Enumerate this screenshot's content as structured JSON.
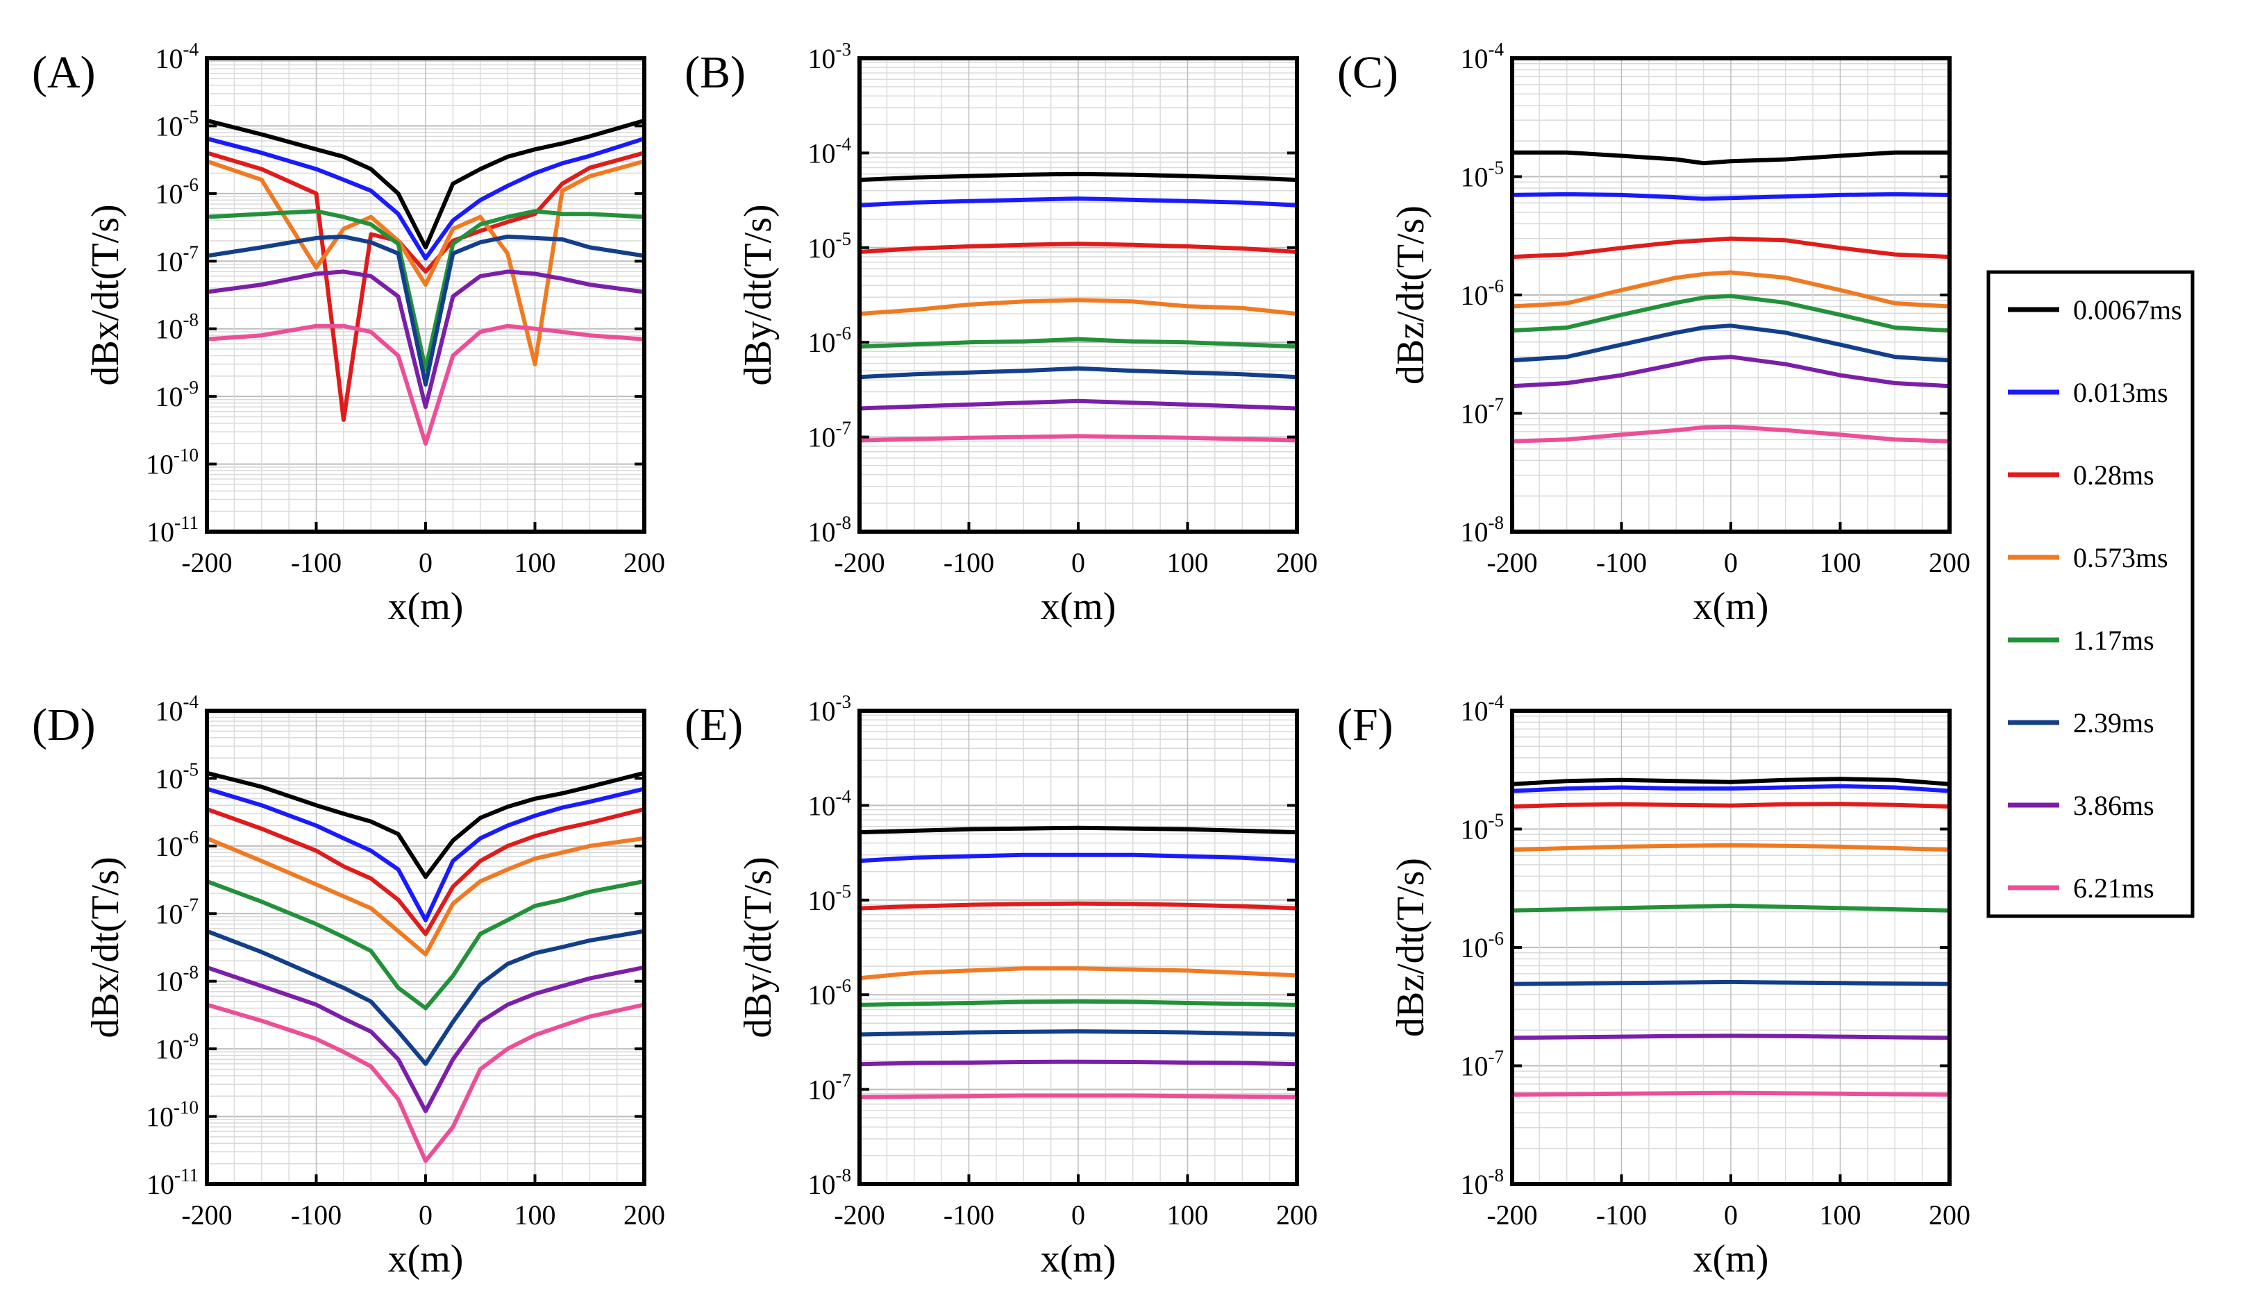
{
  "legend": {
    "entries": [
      {
        "label": "0.0067ms",
        "color": "#000000"
      },
      {
        "label": "0.013ms",
        "color": "#1a1aff"
      },
      {
        "label": "0.28ms",
        "color": "#e01b1b"
      },
      {
        "label": "0.573ms",
        "color": "#f07a22"
      },
      {
        "label": "1.17ms",
        "color": "#23913a"
      },
      {
        "label": "2.39ms",
        "color": "#133f8a"
      },
      {
        "label": "3.86ms",
        "color": "#7b1fa8"
      },
      {
        "label": "6.21ms",
        "color": "#ec4f97"
      }
    ]
  },
  "chart_data": [
    {
      "panel": "(A)",
      "type": "line",
      "xlabel": "x(m)",
      "ylabel": "dBx/dt(T/s)",
      "xlim": [
        -200,
        200
      ],
      "yscale": "log",
      "ylim_exp": [
        -11,
        -4
      ],
      "xticks": [
        "-200",
        "-100",
        "0",
        "100",
        "200"
      ],
      "x": [
        -200,
        -150,
        -100,
        -75,
        -50,
        -25,
        0,
        25,
        50,
        75,
        100,
        125,
        150,
        200
      ],
      "series": [
        {
          "name": "0.0067ms",
          "values": [
            1.2e-05,
            7.5e-06,
            4.5e-06,
            3.5e-06,
            2.3e-06,
            1e-06,
            1.6e-07,
            1.4e-06,
            2.3e-06,
            3.5e-06,
            4.5e-06,
            5.5e-06,
            7e-06,
            1.2e-05
          ]
        },
        {
          "name": "0.013ms",
          "values": [
            6.5e-06,
            4e-06,
            2.3e-06,
            1.6e-06,
            1.1e-06,
            5e-07,
            1.1e-07,
            4e-07,
            8e-07,
            1.3e-06,
            2e-06,
            2.8e-06,
            3.6e-06,
            6.5e-06
          ]
        },
        {
          "name": "0.28ms",
          "values": [
            4e-06,
            2.3e-06,
            1e-06,
            4.5e-10,
            2.5e-07,
            2e-07,
            7e-08,
            2e-07,
            2.8e-07,
            3.8e-07,
            5e-07,
            1.4e-06,
            2.4e-06,
            4e-06
          ]
        },
        {
          "name": "0.573ms",
          "values": [
            3e-06,
            1.6e-06,
            8e-08,
            3e-07,
            4.5e-07,
            2e-07,
            4.5e-08,
            3e-07,
            4.5e-07,
            1.3e-07,
            3e-09,
            1.1e-06,
            1.8e-06,
            3e-06
          ]
        },
        {
          "name": "1.17ms",
          "values": [
            4.5e-07,
            5e-07,
            5.5e-07,
            4.5e-07,
            3.5e-07,
            1.8e-07,
            2.5e-09,
            1.8e-07,
            3.5e-07,
            4.5e-07,
            5.5e-07,
            5e-07,
            5e-07,
            4.5e-07
          ]
        },
        {
          "name": "2.39ms",
          "values": [
            1.2e-07,
            1.6e-07,
            2.2e-07,
            2.3e-07,
            1.9e-07,
            1.3e-07,
            1.5e-09,
            1.3e-07,
            1.9e-07,
            2.3e-07,
            2.2e-07,
            2.1e-07,
            1.6e-07,
            1.2e-07
          ]
        },
        {
          "name": "3.86ms",
          "values": [
            3.5e-08,
            4.5e-08,
            6.5e-08,
            7e-08,
            6e-08,
            3e-08,
            7e-10,
            3e-08,
            6e-08,
            7e-08,
            6.5e-08,
            5.5e-08,
            4.5e-08,
            3.5e-08
          ]
        },
        {
          "name": "6.21ms",
          "values": [
            7e-09,
            8e-09,
            1.1e-08,
            1.1e-08,
            9e-09,
            4e-09,
            2e-10,
            4e-09,
            9e-09,
            1.1e-08,
            1e-08,
            9e-09,
            8e-09,
            7e-09
          ]
        }
      ]
    },
    {
      "panel": "(B)",
      "type": "line",
      "xlabel": "x(m)",
      "ylabel": "dBy/dt(T/s)",
      "xlim": [
        -200,
        200
      ],
      "yscale": "log",
      "ylim_exp": [
        -8,
        -3
      ],
      "xticks": [
        "-200",
        "-100",
        "0",
        "100",
        "200"
      ],
      "x": [
        -200,
        -150,
        -100,
        -50,
        0,
        50,
        100,
        150,
        200
      ],
      "series": [
        {
          "name": "0.0067ms",
          "values": [
            5.2e-05,
            5.5e-05,
            5.7e-05,
            5.9e-05,
            6e-05,
            5.9e-05,
            5.7e-05,
            5.5e-05,
            5.2e-05
          ]
        },
        {
          "name": "0.013ms",
          "values": [
            2.8e-05,
            3e-05,
            3.1e-05,
            3.2e-05,
            3.3e-05,
            3.2e-05,
            3.1e-05,
            3e-05,
            2.8e-05
          ]
        },
        {
          "name": "0.28ms",
          "values": [
            9e-06,
            9.8e-06,
            1.03e-05,
            1.07e-05,
            1.1e-05,
            1.07e-05,
            1.03e-05,
            9.8e-06,
            9e-06
          ]
        },
        {
          "name": "0.573ms",
          "values": [
            2e-06,
            2.2e-06,
            2.5e-06,
            2.7e-06,
            2.8e-06,
            2.7e-06,
            2.4e-06,
            2.3e-06,
            2e-06
          ]
        },
        {
          "name": "1.17ms",
          "values": [
            9e-07,
            9.5e-07,
            1e-06,
            1.02e-06,
            1.08e-06,
            1.02e-06,
            1e-06,
            9.5e-07,
            9e-07
          ]
        },
        {
          "name": "2.39ms",
          "values": [
            4.3e-07,
            4.6e-07,
            4.8e-07,
            5e-07,
            5.3e-07,
            5e-07,
            4.8e-07,
            4.6e-07,
            4.3e-07
          ]
        },
        {
          "name": "3.86ms",
          "values": [
            2e-07,
            2.1e-07,
            2.2e-07,
            2.3e-07,
            2.4e-07,
            2.3e-07,
            2.2e-07,
            2.1e-07,
            2e-07
          ]
        },
        {
          "name": "6.21ms",
          "values": [
            9.2e-08,
            9.5e-08,
            9.8e-08,
            1e-07,
            1.02e-07,
            1e-07,
            9.8e-08,
            9.5e-08,
            9.2e-08
          ]
        }
      ]
    },
    {
      "panel": "(C)",
      "type": "line",
      "xlabel": "x(m)",
      "ylabel": "dBz/dt(T/s)",
      "xlim": [
        -200,
        200
      ],
      "yscale": "log",
      "ylim_exp": [
        -8,
        -4
      ],
      "xticks": [
        "-200",
        "-100",
        "0",
        "100",
        "200"
      ],
      "x": [
        -200,
        -150,
        -100,
        -50,
        -25,
        0,
        50,
        100,
        150,
        200
      ],
      "series": [
        {
          "name": "0.0067ms",
          "values": [
            1.6e-05,
            1.6e-05,
            1.5e-05,
            1.4e-05,
            1.3e-05,
            1.35e-05,
            1.4e-05,
            1.5e-05,
            1.6e-05,
            1.6e-05
          ]
        },
        {
          "name": "0.013ms",
          "values": [
            7e-06,
            7.1e-06,
            7e-06,
            6.7e-06,
            6.5e-06,
            6.6e-06,
            6.8e-06,
            7e-06,
            7.1e-06,
            7e-06
          ]
        },
        {
          "name": "0.28ms",
          "values": [
            2.1e-06,
            2.2e-06,
            2.5e-06,
            2.8e-06,
            2.9e-06,
            3e-06,
            2.9e-06,
            2.5e-06,
            2.2e-06,
            2.1e-06
          ]
        },
        {
          "name": "0.573ms",
          "values": [
            8e-07,
            8.5e-07,
            1.1e-06,
            1.4e-06,
            1.5e-06,
            1.55e-06,
            1.4e-06,
            1.1e-06,
            8.5e-07,
            8e-07
          ]
        },
        {
          "name": "1.17ms",
          "values": [
            5e-07,
            5.3e-07,
            6.8e-07,
            8.6e-07,
            9.5e-07,
            9.8e-07,
            8.6e-07,
            6.8e-07,
            5.3e-07,
            5e-07
          ]
        },
        {
          "name": "2.39ms",
          "values": [
            2.8e-07,
            3e-07,
            3.8e-07,
            4.8e-07,
            5.3e-07,
            5.5e-07,
            4.8e-07,
            3.8e-07,
            3e-07,
            2.8e-07
          ]
        },
        {
          "name": "3.86ms",
          "values": [
            1.7e-07,
            1.8e-07,
            2.1e-07,
            2.6e-07,
            2.9e-07,
            3e-07,
            2.6e-07,
            2.1e-07,
            1.8e-07,
            1.7e-07
          ]
        },
        {
          "name": "6.21ms",
          "values": [
            5.8e-08,
            6e-08,
            6.6e-08,
            7.2e-08,
            7.6e-08,
            7.7e-08,
            7.2e-08,
            6.6e-08,
            6e-08,
            5.8e-08
          ]
        }
      ]
    },
    {
      "panel": "(D)",
      "type": "line",
      "xlabel": "x(m)",
      "ylabel": "dBx/dt(T/s)",
      "xlim": [
        -200,
        200
      ],
      "yscale": "log",
      "ylim_exp": [
        -11,
        -4
      ],
      "xticks": [
        "-200",
        "-100",
        "0",
        "100",
        "200"
      ],
      "x": [
        -200,
        -150,
        -100,
        -75,
        -50,
        -25,
        0,
        25,
        50,
        75,
        100,
        125,
        150,
        200
      ],
      "series": [
        {
          "name": "0.0067ms",
          "values": [
            1.2e-05,
            7.5e-06,
            4e-06,
            3e-06,
            2.3e-06,
            1.5e-06,
            3.5e-07,
            1.2e-06,
            2.6e-06,
            3.8e-06,
            5e-06,
            6e-06,
            7.5e-06,
            1.2e-05
          ]
        },
        {
          "name": "0.013ms",
          "values": [
            7e-06,
            4e-06,
            2e-06,
            1.3e-06,
            8.5e-07,
            4.5e-07,
            8e-08,
            6e-07,
            1.3e-06,
            2e-06,
            2.8e-06,
            3.7e-06,
            4.5e-06,
            7e-06
          ]
        },
        {
          "name": "0.28ms",
          "values": [
            3.5e-06,
            1.8e-06,
            8.5e-07,
            5e-07,
            3.3e-07,
            1.6e-07,
            5e-08,
            2.5e-07,
            6e-07,
            1e-06,
            1.4e-06,
            1.8e-06,
            2.2e-06,
            3.5e-06
          ]
        },
        {
          "name": "0.573ms",
          "values": [
            1.3e-06,
            6e-07,
            2.7e-07,
            1.8e-07,
            1.2e-07,
            5.5e-08,
            2.5e-08,
            1.4e-07,
            3e-07,
            4.5e-07,
            6.5e-07,
            8e-07,
            1e-06,
            1.3e-06
          ]
        },
        {
          "name": "1.17ms",
          "values": [
            3e-07,
            1.5e-07,
            7e-08,
            4.5e-08,
            2.8e-08,
            8e-09,
            4e-09,
            1.2e-08,
            5e-08,
            8e-08,
            1.3e-07,
            1.6e-07,
            2.1e-07,
            3e-07
          ]
        },
        {
          "name": "2.39ms",
          "values": [
            5.5e-08,
            2.7e-08,
            1.2e-08,
            8e-09,
            5e-09,
            1.8e-09,
            6e-10,
            2.5e-09,
            9e-09,
            1.8e-08,
            2.6e-08,
            3.2e-08,
            4e-08,
            5.5e-08
          ]
        },
        {
          "name": "3.86ms",
          "values": [
            1.6e-08,
            8.5e-09,
            4.5e-09,
            2.8e-09,
            1.8e-09,
            7e-10,
            1.2e-10,
            7e-10,
            2.5e-09,
            4.5e-09,
            6.5e-09,
            8.5e-09,
            1.1e-08,
            1.6e-08
          ]
        },
        {
          "name": "6.21ms",
          "values": [
            4.5e-09,
            2.6e-09,
            1.4e-09,
            9e-10,
            5.5e-10,
            1.8e-10,
            2.2e-11,
            7e-11,
            5e-10,
            1e-09,
            1.6e-09,
            2.2e-09,
            3e-09,
            4.5e-09
          ]
        }
      ]
    },
    {
      "panel": "(E)",
      "type": "line",
      "xlabel": "x(m)",
      "ylabel": "dBy/dt(T/s)",
      "xlim": [
        -200,
        200
      ],
      "yscale": "log",
      "ylim_exp": [
        -8,
        -3
      ],
      "xticks": [
        "-200",
        "-100",
        "0",
        "100",
        "200"
      ],
      "x": [
        -200,
        -150,
        -100,
        -50,
        0,
        50,
        100,
        150,
        200
      ],
      "series": [
        {
          "name": "0.0067ms",
          "values": [
            5.2e-05,
            5.4e-05,
            5.6e-05,
            5.7e-05,
            5.8e-05,
            5.7e-05,
            5.6e-05,
            5.4e-05,
            5.2e-05
          ]
        },
        {
          "name": "0.013ms",
          "values": [
            2.6e-05,
            2.8e-05,
            2.9e-05,
            3e-05,
            3e-05,
            3e-05,
            2.9e-05,
            2.8e-05,
            2.6e-05
          ]
        },
        {
          "name": "0.28ms",
          "values": [
            8.2e-06,
            8.6e-06,
            8.9e-06,
            9.1e-06,
            9.2e-06,
            9.1e-06,
            8.9e-06,
            8.6e-06,
            8.2e-06
          ]
        },
        {
          "name": "0.573ms",
          "values": [
            1.5e-06,
            1.7e-06,
            1.8e-06,
            1.9e-06,
            1.9e-06,
            1.85e-06,
            1.8e-06,
            1.7e-06,
            1.6e-06
          ]
        },
        {
          "name": "1.17ms",
          "values": [
            7.8e-07,
            8e-07,
            8.2e-07,
            8.4e-07,
            8.5e-07,
            8.4e-07,
            8.2e-07,
            8e-07,
            7.8e-07
          ]
        },
        {
          "name": "2.39ms",
          "values": [
            3.8e-07,
            3.9e-07,
            4e-07,
            4.05e-07,
            4.1e-07,
            4.05e-07,
            4e-07,
            3.9e-07,
            3.8e-07
          ]
        },
        {
          "name": "3.86ms",
          "values": [
            1.85e-07,
            1.9e-07,
            1.92e-07,
            1.95e-07,
            1.96e-07,
            1.95e-07,
            1.92e-07,
            1.9e-07,
            1.85e-07
          ]
        },
        {
          "name": "6.21ms",
          "values": [
            8.3e-08,
            8.4e-08,
            8.5e-08,
            8.6e-08,
            8.6e-08,
            8.6e-08,
            8.5e-08,
            8.4e-08,
            8.3e-08
          ]
        }
      ]
    },
    {
      "panel": "(F)",
      "type": "line",
      "xlabel": "x(m)",
      "ylabel": "dBz/dt(T/s)",
      "xlim": [
        -200,
        200
      ],
      "yscale": "log",
      "ylim_exp": [
        -8,
        -4
      ],
      "xticks": [
        "-200",
        "-100",
        "0",
        "100",
        "200"
      ],
      "x": [
        -200,
        -150,
        -100,
        -50,
        0,
        50,
        100,
        150,
        200
      ],
      "series": [
        {
          "name": "0.0067ms",
          "values": [
            2.4e-05,
            2.55e-05,
            2.6e-05,
            2.55e-05,
            2.5e-05,
            2.6e-05,
            2.65e-05,
            2.6e-05,
            2.4e-05
          ]
        },
        {
          "name": "0.013ms",
          "values": [
            2.1e-05,
            2.2e-05,
            2.25e-05,
            2.2e-05,
            2.2e-05,
            2.25e-05,
            2.3e-05,
            2.25e-05,
            2.1e-05
          ]
        },
        {
          "name": "0.28ms",
          "values": [
            1.55e-05,
            1.6e-05,
            1.62e-05,
            1.6e-05,
            1.58e-05,
            1.62e-05,
            1.63e-05,
            1.6e-05,
            1.55e-05
          ]
        },
        {
          "name": "0.573ms",
          "values": [
            6.7e-06,
            6.9e-06,
            7.1e-06,
            7.2e-06,
            7.3e-06,
            7.2e-06,
            7.1e-06,
            6.9e-06,
            6.7e-06
          ]
        },
        {
          "name": "1.17ms",
          "values": [
            2.05e-06,
            2.1e-06,
            2.15e-06,
            2.2e-06,
            2.25e-06,
            2.2e-06,
            2.15e-06,
            2.1e-06,
            2.05e-06
          ]
        },
        {
          "name": "2.39ms",
          "values": [
            4.9e-07,
            4.95e-07,
            5e-07,
            5.05e-07,
            5.1e-07,
            5.05e-07,
            5e-07,
            4.95e-07,
            4.9e-07
          ]
        },
        {
          "name": "3.86ms",
          "values": [
            1.72e-07,
            1.74e-07,
            1.76e-07,
            1.78e-07,
            1.79e-07,
            1.78e-07,
            1.76e-07,
            1.74e-07,
            1.72e-07
          ]
        },
        {
          "name": "6.21ms",
          "values": [
            5.7e-08,
            5.75e-08,
            5.8e-08,
            5.85e-08,
            5.9e-08,
            5.85e-08,
            5.8e-08,
            5.75e-08,
            5.7e-08
          ]
        }
      ]
    }
  ]
}
